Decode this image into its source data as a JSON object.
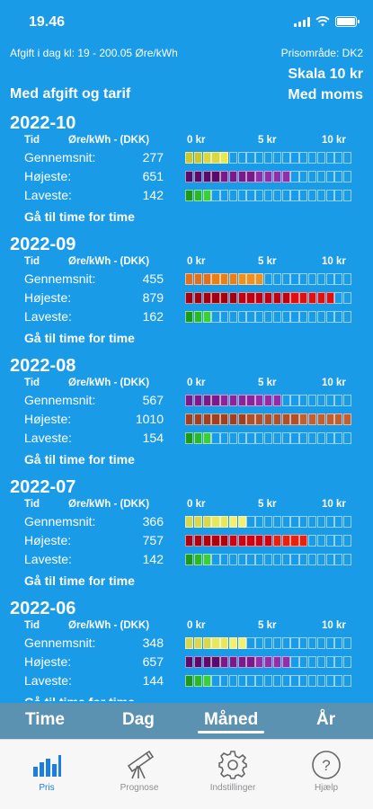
{
  "status_bar": {
    "time": "19.46"
  },
  "info": {
    "fee_text": "Afgift i dag kl: 19 - 200.05 Øre/kWh",
    "price_area": "Prisområde: DK2",
    "scale": "Skala 10 kr",
    "mode_left": "Med afgift og tarif",
    "mode_right": "Med moms"
  },
  "columns": {
    "tid": "Tid",
    "unit": "Øre/kWh - (DKK)",
    "k0": "0 kr",
    "k5": "5 kr",
    "k10": "10 kr"
  },
  "labels": {
    "avg": "Gennemsnit:",
    "high": "Højeste:",
    "low": "Laveste:",
    "goto": "Gå til time for time"
  },
  "scale_max_ore": 1000,
  "months": [
    {
      "title": "2022-10",
      "avg": "277",
      "high": "651",
      "low": "142"
    },
    {
      "title": "2022-09",
      "avg": "455",
      "high": "879",
      "low": "162"
    },
    {
      "title": "2022-08",
      "avg": "567",
      "high": "1010",
      "low": "154"
    },
    {
      "title": "2022-07",
      "avg": "366",
      "high": "757",
      "low": "142"
    },
    {
      "title": "2022-06",
      "avg": "348",
      "high": "657",
      "low": "144"
    }
  ],
  "colors": {
    "avg": {
      "2022-10": [
        "#c8c832",
        "#d8d840",
        "#e8e850"
      ],
      "2022-09": [
        "#e07020",
        "#e8801a",
        "#f09020"
      ],
      "2022-08": [
        "#7a1a8a",
        "#8a2499",
        "#962aa6"
      ],
      "2022-07": [
        "#d8d850",
        "#e8e860",
        "#f4f070"
      ],
      "2022-06": [
        "#d8d850",
        "#e8e860",
        "#f4f070"
      ]
    },
    "high": {
      "2022-10": [
        "#5a0a6a",
        "#7a1a8a",
        "#9030a8"
      ],
      "2022-09": [
        "#a00010",
        "#c00010",
        "#e01010"
      ],
      "2022-08": [
        "#a04020",
        "#b0502a",
        "#c06030"
      ],
      "2022-07": [
        "#b00010",
        "#d00010",
        "#e82010"
      ],
      "2022-06": [
        "#5a0a6a",
        "#7a1a8a",
        "#9030a8"
      ]
    },
    "low": [
      "#1a9a1a",
      "#2ab82a",
      "#3ad03a"
    ]
  },
  "view_tabs": [
    {
      "label": "Time"
    },
    {
      "label": "Dag"
    },
    {
      "label": "Måned",
      "active": true
    },
    {
      "label": "År"
    }
  ],
  "tab_bar": [
    {
      "label": "Pris",
      "icon": "bar-chart-icon",
      "active": true
    },
    {
      "label": "Prognose",
      "icon": "telescope-icon"
    },
    {
      "label": "Indstillinger",
      "icon": "gear-icon"
    },
    {
      "label": "Hjælp",
      "icon": "question-icon"
    }
  ]
}
